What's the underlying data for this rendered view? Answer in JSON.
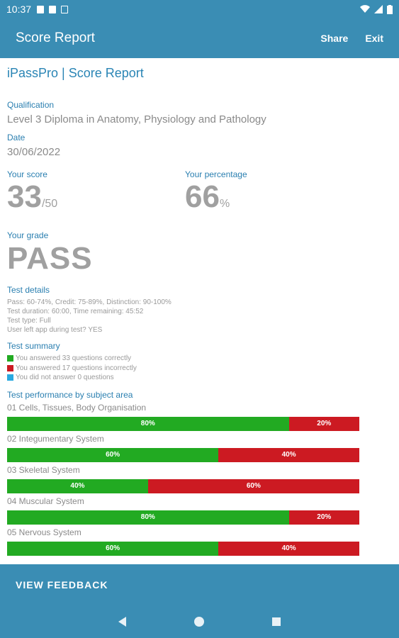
{
  "status_bar": {
    "time": "10:37"
  },
  "app_bar": {
    "title": "Score Report",
    "share_label": "Share",
    "exit_label": "Exit"
  },
  "report": {
    "brand_title": "iPassPro | Score Report",
    "qualification_label": "Qualification",
    "qualification_value": "Level 3 Diploma in Anatomy, Physiology and Pathology",
    "date_label": "Date",
    "date_value": "30/06/2022",
    "score_label": "Your score",
    "score_value": "33",
    "score_total": "/50",
    "percentage_label": "Your percentage",
    "percentage_value": "66",
    "percentage_unit": "%",
    "grade_label": "Your grade",
    "grade_value": "PASS",
    "test_details_label": "Test details",
    "test_details": [
      "Pass: 60-74%, Credit: 75-89%, Distinction: 90-100%",
      "Test duration: 60:00, Time remaining: 45:52",
      "Test type: Full",
      "User left app during test? YES"
    ],
    "test_summary_label": "Test summary",
    "test_summary": [
      {
        "text": "You answered 33 questions correctly",
        "color": "#22aa22"
      },
      {
        "text": "You answered 17 questions incorrectly",
        "color": "#cc1a22"
      },
      {
        "text": "You did not answer 0 questions",
        "color": "#29a9e0"
      }
    ],
    "performance_label": "Test performance by subject area",
    "subjects": [
      {
        "name": "01 Cells, Tissues, Body Organisation",
        "correct_pct": 80,
        "incorrect_pct": 20,
        "correct_label": "80%",
        "incorrect_label": "20%"
      },
      {
        "name": "02 Integumentary System",
        "correct_pct": 60,
        "incorrect_pct": 40,
        "correct_label": "60%",
        "incorrect_label": "40%"
      },
      {
        "name": "03 Skeletal System",
        "correct_pct": 40,
        "incorrect_pct": 60,
        "correct_label": "40%",
        "incorrect_label": "60%"
      },
      {
        "name": "04 Muscular System",
        "correct_pct": 80,
        "incorrect_pct": 20,
        "correct_label": "80%",
        "incorrect_label": "20%"
      },
      {
        "name": "05 Nervous System",
        "correct_pct": 60,
        "incorrect_pct": 40,
        "correct_label": "60%",
        "incorrect_label": "40%"
      }
    ],
    "colors": {
      "correct": "#22aa22",
      "incorrect": "#cc1a22",
      "accent": "#3a8db4"
    }
  },
  "bottom_bar": {
    "feedback_label": "VIEW FEEDBACK"
  },
  "nav": {
    "back_icon": "back-triangle-icon",
    "home_icon": "home-circle-icon",
    "recent_icon": "recent-square-icon"
  }
}
